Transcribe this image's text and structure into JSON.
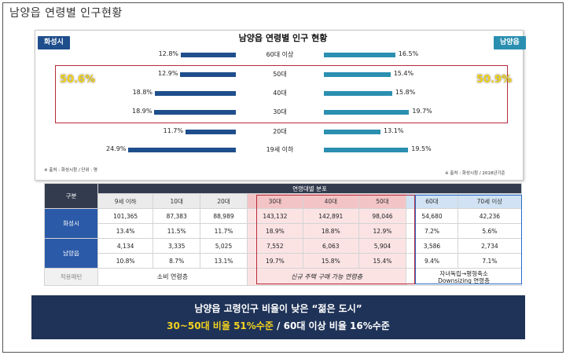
{
  "page_title": "남양읍 연령별 인구현황",
  "chart_title": "남양읍 연령별 인구 현황",
  "left_region": "화성시",
  "right_region": "남양읍",
  "colors": {
    "left_bar": "#1f4e8c",
    "right_bar": "#2a8fb0",
    "highlight": "#b72a3a",
    "banner": "#1f3358",
    "yellow": "#f3d21f"
  },
  "chart_data": {
    "type": "bar",
    "categories": [
      "60대 이상",
      "50대",
      "40대",
      "30대",
      "20대",
      "19세 이하"
    ],
    "series": [
      {
        "name": "화성시",
        "values": [
          12.8,
          12.9,
          18.8,
          18.9,
          11.7,
          24.9
        ]
      },
      {
        "name": "남양읍",
        "values": [
          16.5,
          15.4,
          15.8,
          19.7,
          13.1,
          19.5
        ]
      }
    ],
    "labels_left": [
      "12.8%",
      "12.9%",
      "18.8%",
      "18.9%",
      "11.7%",
      "24.9%"
    ],
    "labels_right": [
      "16.5%",
      "15.4%",
      "15.8%",
      "19.7%",
      "13.1%",
      "19.5%"
    ]
  },
  "highlight_left": "50.6%",
  "highlight_right": "50.9%",
  "note_left": "※ 출처 : 화성시청 / 단위 : 명",
  "note_right": "※ 출처 : 화성시청 / 2018년기준",
  "table": {
    "corner": "구분",
    "group_header": "연령대별 분포",
    "age_headers": [
      "9세 이하",
      "10대",
      "20대",
      "30대",
      "40대",
      "50대",
      "60대",
      "70세 이상"
    ],
    "rows": [
      {
        "label": "화성시",
        "counts": [
          "101,365",
          "87,383",
          "88,989",
          "143,132",
          "142,891",
          "98,046",
          "54,680",
          "42,236"
        ],
        "pcts": [
          "13.4%",
          "11.5%",
          "11.7%",
          "18.9%",
          "18.8%",
          "12.9%",
          "7.2%",
          "5.6%"
        ]
      },
      {
        "label": "남양읍",
        "counts": [
          "4,134",
          "3,335",
          "5,025",
          "7,552",
          "6,063",
          "5,904",
          "3,586",
          "2,734"
        ],
        "pcts": [
          "10.8%",
          "8.7%",
          "13.1%",
          "19.7%",
          "15.8%",
          "15.4%",
          "9.4%",
          "7.1%"
        ]
      }
    ],
    "pattern_label": "적용패턴",
    "pattern_1": "소비 연령층",
    "pattern_2": "신규 주택 구매 가능 연령층",
    "pattern_3_line1": "자녀독립→평형축소",
    "pattern_3_line2": "Downsizing 연령층"
  },
  "banner": {
    "line1": "남양읍 고령인구 비율이 낮은  “젊은 도시”",
    "line2_a": "30~50대 비율 51%수준",
    "line2_b": " / 60대 이상 비율 16%수준"
  }
}
